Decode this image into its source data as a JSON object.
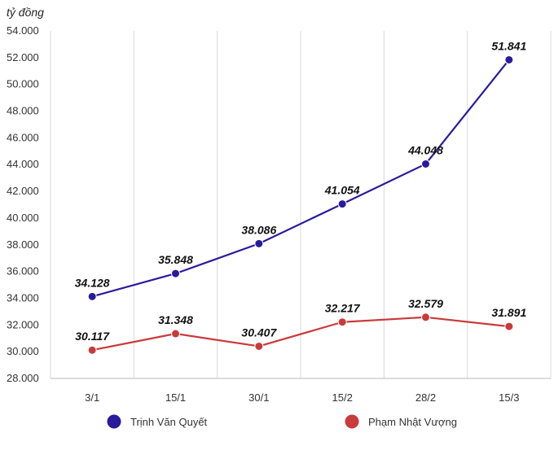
{
  "chart_data": {
    "type": "line",
    "unit_label": "tỷ đồng",
    "categories": [
      "3/1",
      "15/1",
      "30/1",
      "15/2",
      "28/2",
      "15/3"
    ],
    "y_ticks": [
      "28.000",
      "30.000",
      "32.000",
      "34.000",
      "36.000",
      "38.000",
      "40.000",
      "42.000",
      "44.000",
      "46.000",
      "48.000",
      "50.000",
      "52.000",
      "54.000"
    ],
    "ylim": [
      28000,
      54000
    ],
    "grid": "vertical",
    "legend_position": "bottom",
    "series": [
      {
        "name": "Trịnh Văn Quyết",
        "color": "#2a1a9c",
        "values": [
          34128,
          35848,
          38086,
          41054,
          44048,
          51841
        ],
        "labels": [
          "34.128",
          "35.848",
          "38.086",
          "41.054",
          "44.048",
          "51.841"
        ]
      },
      {
        "name": "Phạm Nhật Vượng",
        "color": "#c93a3a",
        "values": [
          30117,
          31348,
          30407,
          32217,
          32579,
          31891
        ],
        "labels": [
          "30.117",
          "31.348",
          "30.407",
          "32.217",
          "32.579",
          "31.891"
        ]
      }
    ]
  }
}
